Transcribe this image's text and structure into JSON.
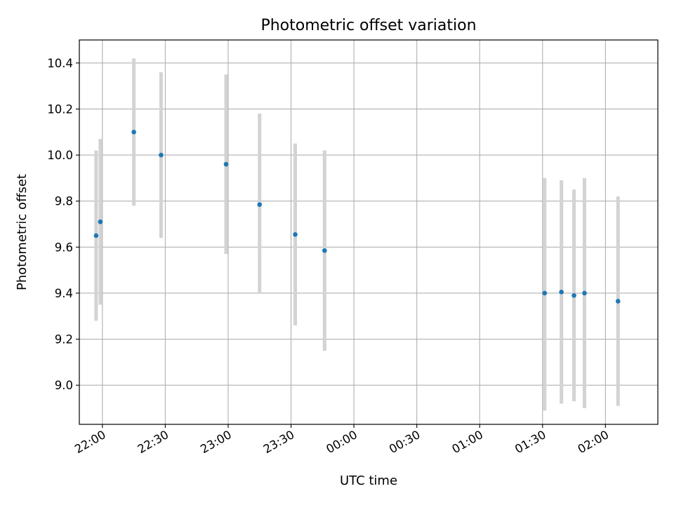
{
  "chart_data": {
    "type": "scatter",
    "title": "Photometric offset variation",
    "xlabel": "UTC time",
    "ylabel": "Photometric offset",
    "x_tick_labels": [
      "22:00",
      "22:30",
      "23:00",
      "23:30",
      "00:00",
      "00:30",
      "01:00",
      "01:30",
      "02:00"
    ],
    "y_tick_labels": [
      "9.0",
      "9.2",
      "9.4",
      "9.6",
      "9.8",
      "10.0",
      "10.2",
      "10.4"
    ],
    "x_ticks": [
      "22:00",
      "22:30",
      "23:00",
      "23:30",
      "00:00",
      "00:30",
      "01:00",
      "01:30",
      "02:00"
    ],
    "y_ticks": [
      9.0,
      9.2,
      9.4,
      9.6,
      9.8,
      10.0,
      10.2,
      10.4
    ],
    "xlim": [
      "21:49",
      "02:25"
    ],
    "ylim": [
      8.83,
      10.5
    ],
    "grid": true,
    "marker_color": "#1f77b4",
    "errorbar_color": "#d3d3d3",
    "series": [
      {
        "points": [
          {
            "x": "21:57",
            "y": 9.65,
            "ylow": 9.28,
            "yhigh": 10.02
          },
          {
            "x": "21:59",
            "y": 9.71,
            "ylow": 9.35,
            "yhigh": 10.07
          },
          {
            "x": "22:15",
            "y": 10.1,
            "ylow": 9.78,
            "yhigh": 10.42
          },
          {
            "x": "22:28",
            "y": 10.0,
            "ylow": 9.64,
            "yhigh": 10.36
          },
          {
            "x": "22:59",
            "y": 9.96,
            "ylow": 9.57,
            "yhigh": 10.35
          },
          {
            "x": "23:15",
            "y": 9.785,
            "ylow": 9.4,
            "yhigh": 10.18
          },
          {
            "x": "23:32",
            "y": 9.655,
            "ylow": 9.26,
            "yhigh": 10.05
          },
          {
            "x": "23:46",
            "y": 9.585,
            "ylow": 9.15,
            "yhigh": 10.02
          },
          {
            "x": "01:31",
            "y": 9.4,
            "ylow": 8.89,
            "yhigh": 9.9
          },
          {
            "x": "01:39",
            "y": 9.405,
            "ylow": 8.92,
            "yhigh": 9.89
          },
          {
            "x": "01:45",
            "y": 9.39,
            "ylow": 8.93,
            "yhigh": 9.85
          },
          {
            "x": "01:50",
            "y": 9.4,
            "ylow": 8.9,
            "yhigh": 9.9
          },
          {
            "x": "02:06",
            "y": 9.365,
            "ylow": 8.91,
            "yhigh": 9.82
          }
        ]
      }
    ]
  }
}
